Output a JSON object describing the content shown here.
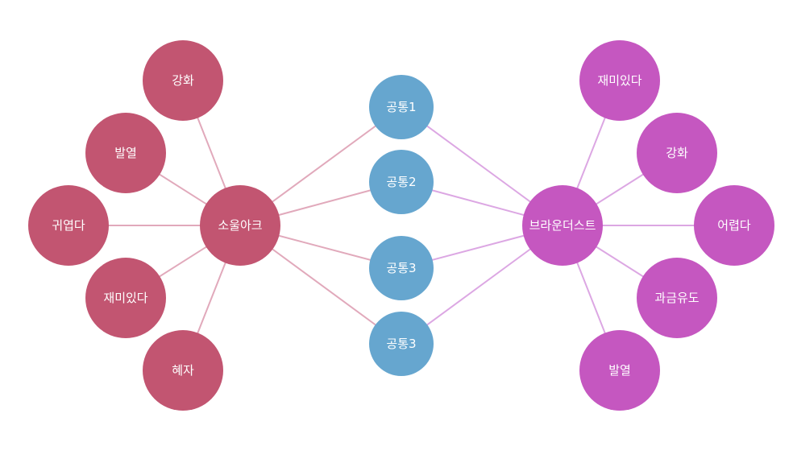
{
  "colors": {
    "left_group": "#c25571",
    "right_group": "#c557c0",
    "common_group": "#66a6cf",
    "left_edge": "#e1a9bb",
    "right_edge": "#dca7e3"
  },
  "hubs": {
    "left": "소울아크",
    "right": "브라운더스트"
  },
  "left_leaves": [
    "강화",
    "발열",
    "귀엽다",
    "재미있다",
    "혜자"
  ],
  "right_leaves": [
    "재미있다",
    "강화",
    "어렵다",
    "과금유도",
    "발열"
  ],
  "common": [
    "공통1",
    "공통2",
    "공통3",
    "공통3"
  ]
}
